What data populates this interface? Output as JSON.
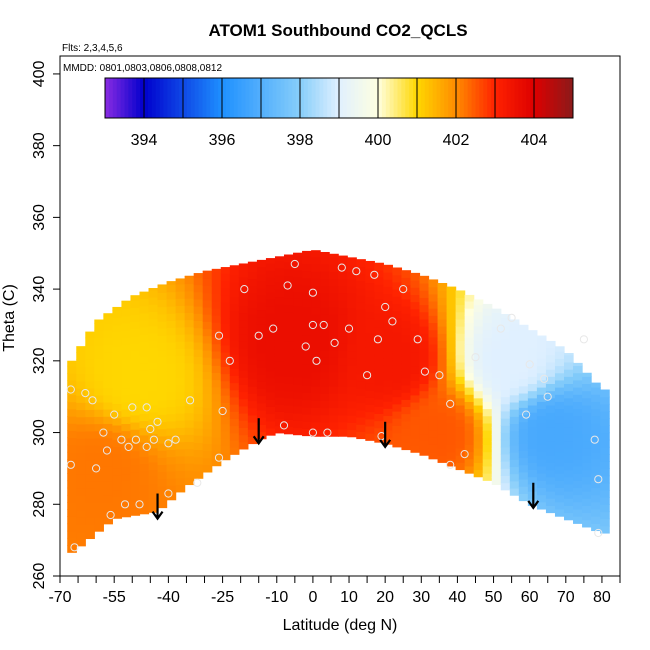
{
  "chart_data": {
    "type": "heatmap",
    "title": "ATOM1 Southbound CO2_QCLS",
    "flights_label": "Flts: 2,3,4,5,6",
    "dates_label": "MMDD: 0801,0803,0806,0808,0812",
    "xlabel": "Latitude (deg N)",
    "ylabel": "Theta (C)",
    "xlim": [
      -70,
      85
    ],
    "ylim": [
      260,
      405
    ],
    "x_tick_labels": [
      {
        "value": -70,
        "label": "-70"
      },
      {
        "value": -55,
        "label": "-55"
      },
      {
        "value": -40,
        "label": "-40"
      },
      {
        "value": -25,
        "label": "-25"
      },
      {
        "value": -10,
        "label": "-10"
      },
      {
        "value": 0,
        "label": "0"
      },
      {
        "value": 10,
        "label": "10"
      },
      {
        "value": 20,
        "label": "20"
      },
      {
        "value": 30,
        "label": "30"
      },
      {
        "value": 40,
        "label": "40"
      },
      {
        "value": 50,
        "label": "50"
      },
      {
        "value": 60,
        "label": "60"
      },
      {
        "value": 70,
        "label": "70"
      },
      {
        "value": 80,
        "label": "80"
      }
    ],
    "y_tick_labels": [
      {
        "value": 260,
        "label": "260"
      },
      {
        "value": 280,
        "label": "280"
      },
      {
        "value": 300,
        "label": "300"
      },
      {
        "value": 320,
        "label": "320"
      },
      {
        "value": 340,
        "label": "340"
      },
      {
        "value": 360,
        "label": "360"
      },
      {
        "value": 380,
        "label": "380"
      },
      {
        "value": 400,
        "label": "400"
      }
    ],
    "colorbar": {
      "range": [
        393,
        405
      ],
      "ticks": [
        {
          "value": 394,
          "label": "394"
        },
        {
          "value": 396,
          "label": "396"
        },
        {
          "value": 398,
          "label": "398"
        },
        {
          "value": 400,
          "label": "400"
        },
        {
          "value": 402,
          "label": "402"
        },
        {
          "value": 404,
          "label": "404"
        }
      ],
      "stops": [
        {
          "value": 393,
          "color": "#8a2be2"
        },
        {
          "value": 394,
          "color": "#0000cd"
        },
        {
          "value": 396,
          "color": "#1e90ff"
        },
        {
          "value": 398,
          "color": "#87cefa"
        },
        {
          "value": 399,
          "color": "#e0f0ff"
        },
        {
          "value": 400,
          "color": "#ffffe0"
        },
        {
          "value": 401,
          "color": "#ffd700"
        },
        {
          "value": 402,
          "color": "#ff8c00"
        },
        {
          "value": 403,
          "color": "#ff2200"
        },
        {
          "value": 404,
          "color": "#dd0000"
        },
        {
          "value": 405,
          "color": "#8b1a1a"
        }
      ]
    },
    "field_envelope": {
      "upper": [
        {
          "lat": -68,
          "theta": 318
        },
        {
          "lat": -60,
          "theta": 331
        },
        {
          "lat": -50,
          "theta": 338
        },
        {
          "lat": -40,
          "theta": 342
        },
        {
          "lat": -30,
          "theta": 345
        },
        {
          "lat": -20,
          "theta": 347
        },
        {
          "lat": -10,
          "theta": 349
        },
        {
          "lat": 0,
          "theta": 351
        },
        {
          "lat": 10,
          "theta": 349
        },
        {
          "lat": 20,
          "theta": 347
        },
        {
          "lat": 30,
          "theta": 344
        },
        {
          "lat": 40,
          "theta": 340
        },
        {
          "lat": 50,
          "theta": 335
        },
        {
          "lat": 60,
          "theta": 329
        },
        {
          "lat": 70,
          "theta": 323
        },
        {
          "lat": 80,
          "theta": 312
        }
      ],
      "lower": [
        {
          "lat": 80,
          "theta": 272
        },
        {
          "lat": 70,
          "theta": 276
        },
        {
          "lat": 60,
          "theta": 280
        },
        {
          "lat": 50,
          "theta": 286
        },
        {
          "lat": 40,
          "theta": 290
        },
        {
          "lat": 30,
          "theta": 294
        },
        {
          "lat": 20,
          "theta": 297
        },
        {
          "lat": 10,
          "theta": 299
        },
        {
          "lat": 0,
          "theta": 299
        },
        {
          "lat": -10,
          "theta": 300
        },
        {
          "lat": -15,
          "theta": 298
        },
        {
          "lat": -25,
          "theta": 292
        },
        {
          "lat": -35,
          "theta": 285
        },
        {
          "lat": -43,
          "theta": 278
        },
        {
          "lat": -55,
          "theta": 276
        },
        {
          "lat": -66,
          "theta": 267
        },
        {
          "lat": -68,
          "theta": 266
        }
      ]
    },
    "field_regions": [
      {
        "name": "southern-yellow",
        "lat": -48,
        "theta": 315,
        "value": 401.0
      },
      {
        "name": "southern-orange",
        "lat": -58,
        "theta": 290,
        "value": 402.2
      },
      {
        "name": "tropical-red",
        "lat": -5,
        "theta": 325,
        "value": 403.6
      },
      {
        "name": "northern-red",
        "lat": 22,
        "theta": 320,
        "value": 403.3
      },
      {
        "name": "mid-orange",
        "lat": 35,
        "theta": 300,
        "value": 402.5
      },
      {
        "name": "northern-blue",
        "lat": 66,
        "theta": 300,
        "value": 396.8
      },
      {
        "name": "northern-light",
        "lat": 55,
        "theta": 320,
        "value": 399.0
      }
    ],
    "sample_points": [
      {
        "lat": -67,
        "theta": 312
      },
      {
        "lat": -67,
        "theta": 291
      },
      {
        "lat": -66,
        "theta": 268
      },
      {
        "lat": -63,
        "theta": 311
      },
      {
        "lat": -61,
        "theta": 309
      },
      {
        "lat": -60,
        "theta": 290
      },
      {
        "lat": -58,
        "theta": 300
      },
      {
        "lat": -57,
        "theta": 295
      },
      {
        "lat": -56,
        "theta": 277
      },
      {
        "lat": -55,
        "theta": 305
      },
      {
        "lat": -53,
        "theta": 298
      },
      {
        "lat": -52,
        "theta": 280
      },
      {
        "lat": -51,
        "theta": 296
      },
      {
        "lat": -50,
        "theta": 307
      },
      {
        "lat": -49,
        "theta": 298
      },
      {
        "lat": -48,
        "theta": 280
      },
      {
        "lat": -46,
        "theta": 296
      },
      {
        "lat": -46,
        "theta": 307
      },
      {
        "lat": -45,
        "theta": 301
      },
      {
        "lat": -44,
        "theta": 298
      },
      {
        "lat": -43,
        "theta": 303
      },
      {
        "lat": -40,
        "theta": 297
      },
      {
        "lat": -40,
        "theta": 283
      },
      {
        "lat": -38,
        "theta": 298
      },
      {
        "lat": -34,
        "theta": 309
      },
      {
        "lat": -32,
        "theta": 286
      },
      {
        "lat": -26,
        "theta": 293
      },
      {
        "lat": -25,
        "theta": 306
      },
      {
        "lat": -23,
        "theta": 320
      },
      {
        "lat": -26,
        "theta": 327
      },
      {
        "lat": -19,
        "theta": 340
      },
      {
        "lat": -15,
        "theta": 327
      },
      {
        "lat": -11,
        "theta": 329
      },
      {
        "lat": -8,
        "theta": 302
      },
      {
        "lat": -7,
        "theta": 341
      },
      {
        "lat": -5,
        "theta": 347
      },
      {
        "lat": -2,
        "theta": 324
      },
      {
        "lat": 0,
        "theta": 330
      },
      {
        "lat": 0,
        "theta": 339
      },
      {
        "lat": 0,
        "theta": 300
      },
      {
        "lat": 1,
        "theta": 320
      },
      {
        "lat": 3,
        "theta": 330
      },
      {
        "lat": 4,
        "theta": 300
      },
      {
        "lat": 6,
        "theta": 325
      },
      {
        "lat": 8,
        "theta": 346
      },
      {
        "lat": 10,
        "theta": 329
      },
      {
        "lat": 12,
        "theta": 345
      },
      {
        "lat": 15,
        "theta": 316
      },
      {
        "lat": 17,
        "theta": 344
      },
      {
        "lat": 18,
        "theta": 326
      },
      {
        "lat": 19,
        "theta": 299
      },
      {
        "lat": 20,
        "theta": 335
      },
      {
        "lat": 22,
        "theta": 331
      },
      {
        "lat": 25,
        "theta": 340
      },
      {
        "lat": 29,
        "theta": 326
      },
      {
        "lat": 31,
        "theta": 317
      },
      {
        "lat": 35,
        "theta": 316
      },
      {
        "lat": 38,
        "theta": 308
      },
      {
        "lat": 38,
        "theta": 291
      },
      {
        "lat": 42,
        "theta": 294
      },
      {
        "lat": 45,
        "theta": 321
      },
      {
        "lat": 52,
        "theta": 329
      },
      {
        "lat": 55,
        "theta": 332
      },
      {
        "lat": 59,
        "theta": 305
      },
      {
        "lat": 60,
        "theta": 319
      },
      {
        "lat": 64,
        "theta": 315
      },
      {
        "lat": 65,
        "theta": 310
      },
      {
        "lat": 75,
        "theta": 326
      },
      {
        "lat": 78,
        "theta": 298
      },
      {
        "lat": 79,
        "theta": 287
      },
      {
        "lat": 79,
        "theta": 272
      }
    ],
    "arrows": [
      {
        "lat": -43,
        "theta_top": 283,
        "theta_tip": 276
      },
      {
        "lat": -15,
        "theta_top": 304,
        "theta_tip": 297
      },
      {
        "lat": 20,
        "theta_top": 303,
        "theta_tip": 296
      },
      {
        "lat": 61,
        "theta_top": 286,
        "theta_tip": 279
      }
    ]
  }
}
